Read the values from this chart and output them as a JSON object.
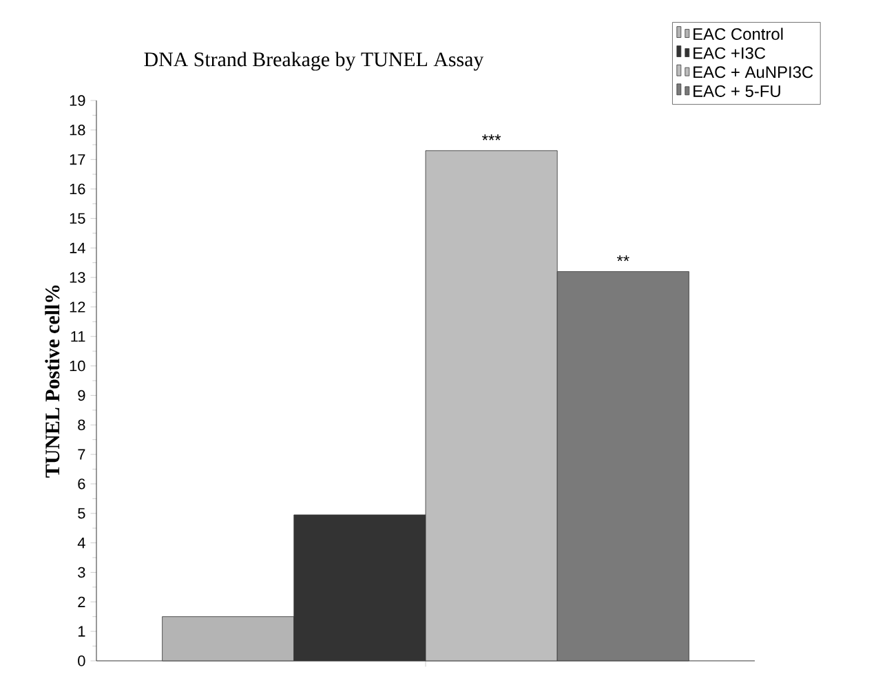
{
  "chart_data": {
    "type": "bar",
    "title": "DNA Strand Breakage by TUNEL Assay",
    "ylabel": "TUNEL Postive cell%",
    "categories": [
      null
    ],
    "series": [
      {
        "name": "EAC Control",
        "color": "#b4b4b4",
        "values": [
          1.5
        ]
      },
      {
        "name": "EAC +I3C",
        "color": "#333333",
        "values": [
          4.95
        ]
      },
      {
        "name": "EAC + AuNPI3C",
        "color": "#bdbdbd",
        "values": [
          17.3
        ]
      },
      {
        "name": "EAC + 5-FU",
        "color": "#7a7a7a",
        "values": [
          13.2
        ]
      }
    ],
    "ylim": [
      0,
      19
    ],
    "yticks": [
      0,
      1,
      2,
      3,
      4,
      5,
      6,
      7,
      8,
      9,
      10,
      11,
      12,
      13,
      14,
      15,
      16,
      17,
      18,
      19
    ],
    "annotations": [
      {
        "text": "***",
        "y": 17.3
      },
      {
        "text": "**",
        "y": 13.2
      }
    ],
    "legend": "top right"
  }
}
